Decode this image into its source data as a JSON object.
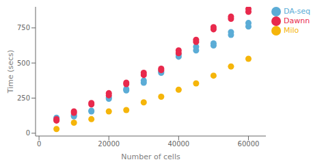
{
  "chart_data": {
    "type": "scatter",
    "xlabel": "Number of cells",
    "ylabel": "Time (secs)",
    "xlim": [
      -1000,
      65000
    ],
    "ylim": [
      -20,
      900
    ],
    "xticks": [
      0,
      20000,
      40000,
      60000
    ],
    "yticks": [
      0,
      250,
      500,
      750
    ],
    "grid": false,
    "legend": "right",
    "series": [
      {
        "name": "DA-seq",
        "color": "#5bacd6",
        "x": [
          5000,
          5000,
          10000,
          10000,
          15000,
          15000,
          20000,
          20000,
          25000,
          25000,
          30000,
          30000,
          35000,
          35000,
          40000,
          40000,
          45000,
          45000,
          50000,
          50000,
          55000,
          55000,
          60000,
          60000
        ],
        "values": [
          95,
          110,
          120,
          130,
          155,
          160,
          245,
          255,
          305,
          315,
          360,
          375,
          430,
          440,
          545,
          560,
          590,
          615,
          625,
          640,
          700,
          720,
          760,
          785
        ]
      },
      {
        "name": "Milo",
        "color": "#f5b50a",
        "x": [
          5000,
          10000,
          15000,
          20000,
          25000,
          30000,
          35000,
          40000,
          45000,
          50000,
          55000,
          60000
        ],
        "values": [
          30,
          75,
          100,
          155,
          165,
          220,
          260,
          310,
          355,
          410,
          475,
          530
        ]
      },
      {
        "name": "Dawnn",
        "color": "#e8294c",
        "x": [
          5000,
          5000,
          10000,
          10000,
          15000,
          15000,
          20000,
          20000,
          25000,
          25000,
          30000,
          30000,
          35000,
          35000,
          40000,
          40000,
          45000,
          45000,
          50000,
          50000,
          55000,
          55000,
          60000,
          60000
        ],
        "values": [
          90,
          100,
          145,
          155,
          205,
          215,
          270,
          285,
          350,
          360,
          415,
          430,
          450,
          460,
          570,
          590,
          650,
          665,
          740,
          755,
          815,
          830,
          865,
          885
        ]
      }
    ]
  }
}
